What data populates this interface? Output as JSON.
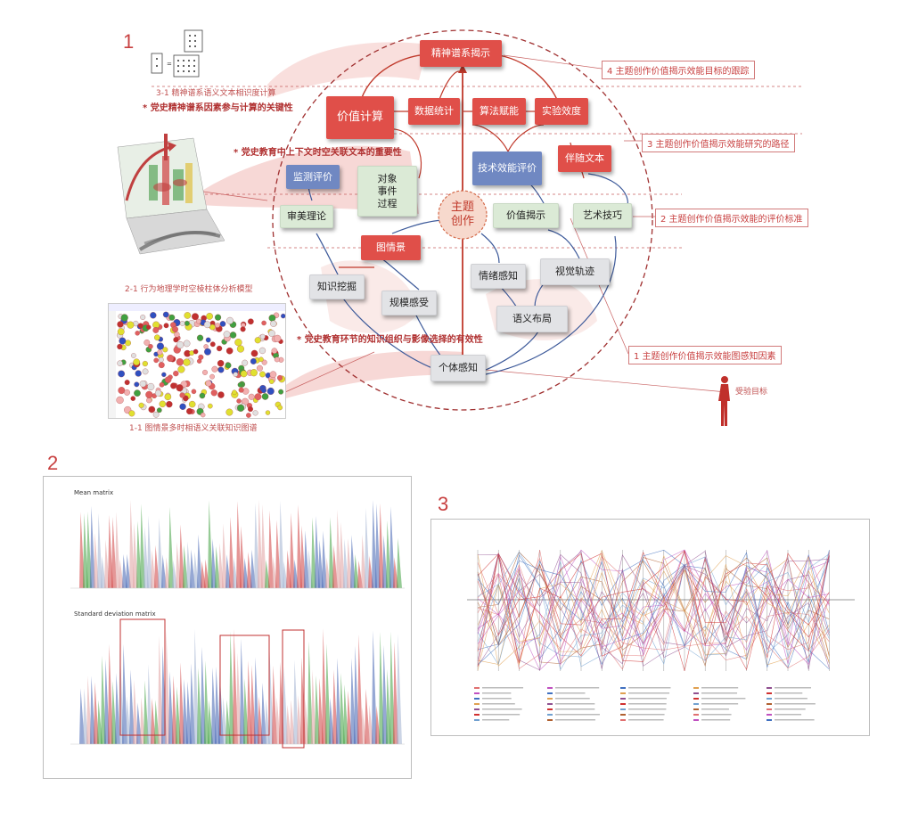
{
  "section1": {
    "num": "1",
    "caption_31": "3-1 精神谱系语义文本相识度计算",
    "note_31": "* 党史精神谱系因素参与计算的关键性",
    "note_context": "* 党史教育中上下文时空关联文本的重要性",
    "caption_21": "2-1 行为地理学时空棱柱体分析模型",
    "note_knowledge": "* 党史教育环节的知识组织与影像选择的有效性",
    "caption_11": "1-1 图情景多时相语义关联知识图谱",
    "target_label": "受验目标",
    "center_node": "主题\n创作",
    "nodes": {
      "spirit": "精神谱系揭示",
      "value_calc": "价值计算",
      "data_stat": "数据统计",
      "algo": "算法赋能",
      "experiment": "实验效度",
      "monitor": "监测评价",
      "object": "对象\n事件\n过程",
      "tech_eval": "技术效能评价",
      "companion": "伴随文本",
      "aesthetic": "审美理论",
      "value_reveal": "价值揭示",
      "art_skill": "艺术技巧",
      "scene": "图情景",
      "knowledge_mining": "知识挖掘",
      "scale_feel": "规模感受",
      "emotion": "情绪感知",
      "visual_track": "视觉轨迹",
      "semantic_layout": "语义布局",
      "individual": "个体感知"
    },
    "right_labels": {
      "r4": "4 主题创作价值揭示效能目标的跟踪",
      "r3": "3 主题创作价值揭示效能研究的路径",
      "r2": "2 主题创作价值揭示效能的评价标准",
      "r1": "1 主题创作价值揭示效能图感知因素"
    }
  },
  "section2": {
    "num": "2",
    "mean_title": "Mean matrix",
    "std_title": "Standard deviation matrix"
  },
  "section3": {
    "num": "3"
  },
  "colors": {
    "accent": "#c84040",
    "red_node": "#e04f49",
    "green_node": "#dbead6",
    "blue_node": "#7088c2",
    "gray_node": "#e2e3e6",
    "center_fill": "#f7d9cd",
    "center_text": "#c0392b"
  }
}
